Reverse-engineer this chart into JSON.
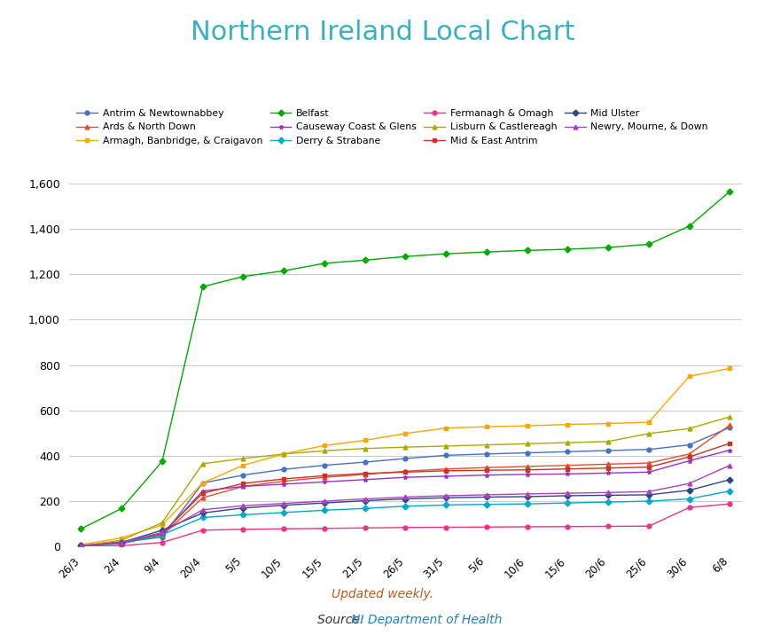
{
  "title": "Northern Ireland Local Chart",
  "title_color": "#38b2bc",
  "xlabel_ticks": [
    "26/3",
    "2/4",
    "9/4",
    "20/4",
    "5/5",
    "10/5",
    "15/5",
    "21/5",
    "26/5",
    "31/5",
    "5/6",
    "10/6",
    "15/6",
    "20/6",
    "25/6",
    "30/6",
    "6/8"
  ],
  "ylim": [
    0,
    1700
  ],
  "yticks": [
    0,
    200,
    400,
    600,
    800,
    1000,
    1200,
    1400,
    1600
  ],
  "footer_text": "Updated weekly.",
  "footer_color": "#b85c20",
  "source_label": "Source: ",
  "source_link": "NI Department of Health",
  "source_link_color": "#2080cc",
  "source_label_color": "#333333",
  "series": [
    {
      "label": "Antrim & Newtownabbey",
      "color": "#4472c4",
      "marker": "o",
      "values": [
        5,
        18,
        42,
        280,
        315,
        340,
        358,
        372,
        388,
        402,
        408,
        413,
        418,
        423,
        428,
        448,
        525
      ]
    },
    {
      "label": "Ards & North Down",
      "color": "#e05030",
      "marker": "^",
      "values": [
        3,
        22,
        48,
        215,
        265,
        288,
        305,
        318,
        332,
        342,
        348,
        353,
        358,
        363,
        368,
        408,
        535
      ]
    },
    {
      "label": "Armagh, Banbridge, & Craigavon",
      "color": "#ffa500",
      "marker": "s",
      "values": [
        8,
        38,
        95,
        280,
        358,
        408,
        445,
        468,
        498,
        522,
        528,
        532,
        538,
        542,
        548,
        750,
        785
      ]
    },
    {
      "label": "Belfast",
      "color": "#00aa00",
      "marker": "D",
      "values": [
        78,
        168,
        375,
        1145,
        1190,
        1215,
        1248,
        1262,
        1278,
        1290,
        1298,
        1305,
        1310,
        1318,
        1332,
        1412,
        1565
      ]
    },
    {
      "label": "Causeway Coast & Glens",
      "color": "#9933cc",
      "marker": "*",
      "values": [
        3,
        18,
        52,
        245,
        265,
        275,
        285,
        295,
        305,
        310,
        315,
        318,
        320,
        324,
        328,
        378,
        425
      ]
    },
    {
      "label": "Derry & Strabane",
      "color": "#00aacc",
      "marker": "D",
      "values": [
        3,
        12,
        52,
        128,
        140,
        150,
        160,
        168,
        178,
        183,
        186,
        188,
        192,
        196,
        200,
        210,
        245
      ]
    },
    {
      "label": "Fermanagh & Omagh",
      "color": "#ee3388",
      "marker": "o",
      "values": [
        3,
        4,
        18,
        72,
        76,
        78,
        80,
        82,
        84,
        85,
        86,
        87,
        88,
        89,
        90,
        172,
        188
      ]
    },
    {
      "label": "Lisburn & Castlereagh",
      "color": "#aaaa00",
      "marker": "^",
      "values": [
        3,
        28,
        105,
        365,
        388,
        408,
        422,
        432,
        438,
        443,
        448,
        453,
        458,
        463,
        498,
        520,
        572
      ]
    },
    {
      "label": "Mid & East Antrim",
      "color": "#cc3322",
      "marker": "s",
      "values": [
        3,
        18,
        58,
        235,
        278,
        298,
        312,
        322,
        328,
        334,
        336,
        338,
        342,
        346,
        350,
        395,
        455
      ]
    },
    {
      "label": "Mid Ulster",
      "color": "#334488",
      "marker": "D",
      "values": [
        3,
        18,
        72,
        148,
        170,
        182,
        192,
        202,
        210,
        215,
        218,
        220,
        224,
        226,
        228,
        248,
        295
      ]
    },
    {
      "label": "Newry, Mourne, & Down",
      "color": "#aa44bb",
      "marker": "^",
      "values": [
        3,
        18,
        62,
        162,
        180,
        190,
        200,
        210,
        218,
        224,
        228,
        232,
        235,
        238,
        242,
        278,
        358
      ]
    }
  ],
  "background_color": "#ffffff",
  "grid_color": "#cccccc"
}
